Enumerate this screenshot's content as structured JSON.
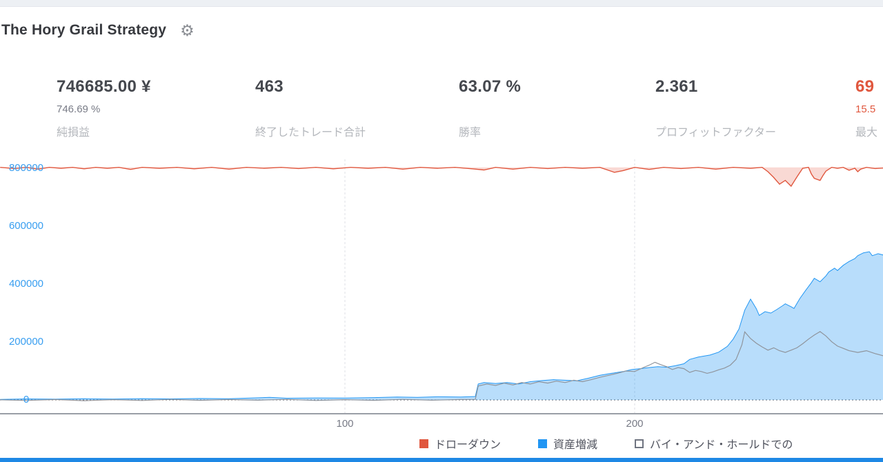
{
  "header": {
    "title": "The Hory Grail Strategy",
    "gear_icon": "⚙"
  },
  "stats": [
    {
      "value": "746685.00 ¥",
      "sub": "746.69 %",
      "label": "純損益"
    },
    {
      "value": "463",
      "sub": "",
      "label": "終了したトレード合計"
    },
    {
      "value": "63.07 %",
      "sub": "",
      "label": "勝率"
    },
    {
      "value": "2.361",
      "sub": "",
      "label": "プロフィットファクター"
    },
    {
      "value": "69",
      "sub": "15.5",
      "label": "最大"
    }
  ],
  "colors": {
    "accent_blue": "#2196f3",
    "drawdown_red": "#e0573e",
    "axis_label_blue": "#389ef0",
    "axis_label_gray": "#787b86",
    "bottom_bar": "#1e88e5"
  },
  "chart_data": {
    "type": "area",
    "title": "",
    "xlabel": "",
    "ylabel": "",
    "grid": "dashed-vertical-at-ticks",
    "legend_position": "bottom",
    "x_axis": {
      "range": [
        -19,
        286
      ],
      "ticks": [
        {
          "value": 100,
          "label": "100"
        },
        {
          "value": 200,
          "label": "200"
        }
      ]
    },
    "y_axis": {
      "range": [
        -57000,
        845000
      ],
      "ticks": [
        {
          "value": 800000,
          "label": "800000"
        },
        {
          "value": 600000,
          "label": "600000"
        },
        {
          "value": 400000,
          "label": "400000"
        },
        {
          "value": 200000,
          "label": "200000"
        },
        {
          "value": 0,
          "label": "0"
        }
      ]
    },
    "legend": {
      "items": [
        {
          "label": "ドローダウン",
          "color": "#e0573e",
          "type": "solid"
        },
        {
          "label": "資産増減",
          "color": "#2196f3",
          "type": "solid"
        },
        {
          "label": "バイ・アンド・ホールドでの",
          "color": "#ffffff",
          "type": "outline"
        }
      ]
    },
    "series": [
      {
        "name": "ドローダウン",
        "color": "#e0573e",
        "width": 1.4,
        "fill": "rgba(229,84,57,0.22)",
        "fill_to": 803000,
        "points": [
          [
            -19,
            803000
          ],
          [
            -14,
            799000
          ],
          [
            -10,
            803000
          ],
          [
            -6,
            797000
          ],
          [
            -2,
            803000
          ],
          [
            2,
            800000
          ],
          [
            6,
            803000
          ],
          [
            10,
            798000
          ],
          [
            14,
            803000
          ],
          [
            18,
            800000
          ],
          [
            22,
            803000
          ],
          [
            26,
            796000
          ],
          [
            30,
            803000
          ],
          [
            36,
            800000
          ],
          [
            42,
            803000
          ],
          [
            48,
            798000
          ],
          [
            54,
            803000
          ],
          [
            60,
            797000
          ],
          [
            66,
            803000
          ],
          [
            72,
            800000
          ],
          [
            78,
            803000
          ],
          [
            84,
            799000
          ],
          [
            90,
            803000
          ],
          [
            96,
            798000
          ],
          [
            102,
            803000
          ],
          [
            108,
            800000
          ],
          [
            114,
            803000
          ],
          [
            120,
            797000
          ],
          [
            126,
            803000
          ],
          [
            132,
            800000
          ],
          [
            138,
            803000
          ],
          [
            144,
            798000
          ],
          [
            148,
            794000
          ],
          [
            152,
            803000
          ],
          [
            158,
            797000
          ],
          [
            164,
            803000
          ],
          [
            170,
            799000
          ],
          [
            176,
            803000
          ],
          [
            182,
            800000
          ],
          [
            188,
            803000
          ],
          [
            193,
            786000
          ],
          [
            196,
            792000
          ],
          [
            200,
            803000
          ],
          [
            205,
            796000
          ],
          [
            210,
            803000
          ],
          [
            216,
            799000
          ],
          [
            222,
            803000
          ],
          [
            228,
            797000
          ],
          [
            234,
            803000
          ],
          [
            240,
            800000
          ],
          [
            244,
            803000
          ],
          [
            246,
            788000
          ],
          [
            248,
            768000
          ],
          [
            250,
            745000
          ],
          [
            252,
            758000
          ],
          [
            254,
            738000
          ],
          [
            256,
            770000
          ],
          [
            258,
            800000
          ],
          [
            260,
            803000
          ],
          [
            261,
            780000
          ],
          [
            262,
            765000
          ],
          [
            264,
            758000
          ],
          [
            265,
            775000
          ],
          [
            266,
            790000
          ],
          [
            268,
            803000
          ],
          [
            270,
            800000
          ],
          [
            272,
            803000
          ],
          [
            274,
            793000
          ],
          [
            276,
            800000
          ],
          [
            277,
            788000
          ],
          [
            278,
            797000
          ],
          [
            280,
            803000
          ],
          [
            283,
            799000
          ],
          [
            286,
            801000
          ]
        ]
      },
      {
        "name": "資産増減",
        "color": "#2196f3",
        "width": 1,
        "fill": "rgba(33,150,243,0.32)",
        "fill_to": 0,
        "points": [
          [
            -19,
            2000
          ],
          [
            -10,
            3500
          ],
          [
            0,
            2500
          ],
          [
            10,
            4000
          ],
          [
            20,
            3000
          ],
          [
            30,
            4500
          ],
          [
            40,
            3500
          ],
          [
            50,
            5000
          ],
          [
            60,
            4000
          ],
          [
            70,
            7500
          ],
          [
            74,
            9000
          ],
          [
            80,
            6000
          ],
          [
            90,
            7000
          ],
          [
            100,
            6500
          ],
          [
            110,
            8000
          ],
          [
            118,
            10000
          ],
          [
            125,
            9000
          ],
          [
            132,
            11000
          ],
          [
            140,
            10000
          ],
          [
            145,
            12000
          ],
          [
            146,
            55000
          ],
          [
            148,
            60000
          ],
          [
            152,
            57000
          ],
          [
            156,
            60000
          ],
          [
            160,
            55000
          ],
          [
            164,
            63000
          ],
          [
            168,
            67000
          ],
          [
            172,
            70000
          ],
          [
            176,
            68000
          ],
          [
            180,
            66000
          ],
          [
            184,
            75000
          ],
          [
            188,
            85000
          ],
          [
            192,
            92000
          ],
          [
            196,
            98000
          ],
          [
            199,
            105000
          ],
          [
            202,
            108000
          ],
          [
            205,
            112000
          ],
          [
            208,
            115000
          ],
          [
            211,
            113000
          ],
          [
            214,
            118000
          ],
          [
            217,
            125000
          ],
          [
            219,
            140000
          ],
          [
            222,
            148000
          ],
          [
            226,
            155000
          ],
          [
            229,
            165000
          ],
          [
            232,
            185000
          ],
          [
            234,
            210000
          ],
          [
            236,
            245000
          ],
          [
            238,
            310000
          ],
          [
            240,
            348000
          ],
          [
            242,
            315000
          ],
          [
            243,
            292000
          ],
          [
            245,
            305000
          ],
          [
            247,
            300000
          ],
          [
            249,
            312000
          ],
          [
            251,
            325000
          ],
          [
            252,
            332000
          ],
          [
            254,
            322000
          ],
          [
            255,
            316000
          ],
          [
            257,
            350000
          ],
          [
            259,
            378000
          ],
          [
            261,
            405000
          ],
          [
            262,
            420000
          ],
          [
            264,
            408000
          ],
          [
            266,
            428000
          ],
          [
            267,
            442000
          ],
          [
            269,
            455000
          ],
          [
            270,
            447000
          ],
          [
            272,
            465000
          ],
          [
            274,
            478000
          ],
          [
            276,
            488000
          ],
          [
            277,
            498000
          ],
          [
            279,
            508000
          ],
          [
            281,
            512000
          ],
          [
            282,
            498000
          ],
          [
            284,
            505000
          ],
          [
            286,
            500000
          ]
        ]
      },
      {
        "name": "バイ・アンド・ホールドでの",
        "color": "#8f949c",
        "width": 1.2,
        "fill": null,
        "fill_to": null,
        "points": [
          [
            -19,
            500
          ],
          [
            -10,
            -2000
          ],
          [
            0,
            1500
          ],
          [
            10,
            -2500
          ],
          [
            20,
            1000
          ],
          [
            30,
            -2000
          ],
          [
            40,
            2000
          ],
          [
            50,
            -1500
          ],
          [
            60,
            1500
          ],
          [
            70,
            -1000
          ],
          [
            80,
            2000
          ],
          [
            90,
            -2000
          ],
          [
            100,
            1000
          ],
          [
            110,
            -1500
          ],
          [
            120,
            2000
          ],
          [
            130,
            -1000
          ],
          [
            140,
            1500
          ],
          [
            145,
            2000
          ],
          [
            146,
            48000
          ],
          [
            149,
            55000
          ],
          [
            152,
            50000
          ],
          [
            155,
            58000
          ],
          [
            158,
            52000
          ],
          [
            161,
            60000
          ],
          [
            164,
            55000
          ],
          [
            167,
            63000
          ],
          [
            170,
            58000
          ],
          [
            173,
            65000
          ],
          [
            176,
            60000
          ],
          [
            179,
            68000
          ],
          [
            182,
            63000
          ],
          [
            185,
            70000
          ],
          [
            188,
            78000
          ],
          [
            191,
            85000
          ],
          [
            194,
            92000
          ],
          [
            197,
            100000
          ],
          [
            200,
            98000
          ],
          [
            203,
            112000
          ],
          [
            205,
            120000
          ],
          [
            207,
            130000
          ],
          [
            209,
            122000
          ],
          [
            211,
            115000
          ],
          [
            213,
            105000
          ],
          [
            215,
            112000
          ],
          [
            217,
            108000
          ],
          [
            219,
            95000
          ],
          [
            221,
            102000
          ],
          [
            223,
            98000
          ],
          [
            225,
            92000
          ],
          [
            227,
            97000
          ],
          [
            229,
            104000
          ],
          [
            231,
            110000
          ],
          [
            233,
            120000
          ],
          [
            235,
            140000
          ],
          [
            237,
            190000
          ],
          [
            238,
            235000
          ],
          [
            240,
            212000
          ],
          [
            242,
            196000
          ],
          [
            244,
            183000
          ],
          [
            246,
            172000
          ],
          [
            248,
            180000
          ],
          [
            250,
            170000
          ],
          [
            252,
            164000
          ],
          [
            254,
            172000
          ],
          [
            256,
            180000
          ],
          [
            258,
            194000
          ],
          [
            260,
            210000
          ],
          [
            262,
            224000
          ],
          [
            264,
            236000
          ],
          [
            266,
            221000
          ],
          [
            268,
            201000
          ],
          [
            270,
            186000
          ],
          [
            272,
            178000
          ],
          [
            274,
            170000
          ],
          [
            277,
            164000
          ],
          [
            280,
            170000
          ],
          [
            283,
            160000
          ],
          [
            286,
            152000
          ]
        ]
      }
    ]
  }
}
